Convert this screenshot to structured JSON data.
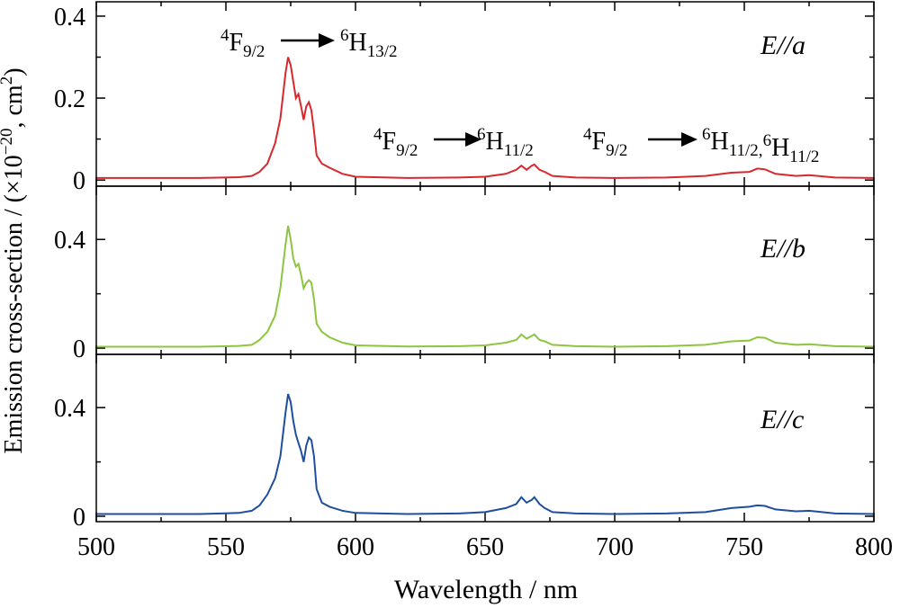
{
  "xlabel": "Wavelength / nm",
  "ylabel": {
    "text": "Emission cross-section / (×10",
    "sup1": "−20",
    "mid": ", cm",
    "sup2": "2",
    "end": ")"
  },
  "chart_data": [
    {
      "type": "line",
      "label": "E//a",
      "x": [
        500,
        540,
        555,
        560,
        563,
        566,
        569,
        571,
        573,
        574,
        575,
        576,
        577,
        578,
        579,
        580,
        581,
        582,
        583,
        584,
        585,
        587,
        590,
        595,
        600,
        620,
        640,
        650,
        658,
        662,
        664,
        666,
        668,
        669,
        671,
        673,
        676,
        685,
        700,
        720,
        735,
        745,
        752,
        755,
        758,
        762,
        770,
        775,
        785,
        800
      ],
      "series": [
        {
          "name": "E//a",
          "color": "#d9272e",
          "values": [
            0.005,
            0.005,
            0.007,
            0.01,
            0.02,
            0.04,
            0.09,
            0.15,
            0.26,
            0.3,
            0.28,
            0.24,
            0.2,
            0.21,
            0.18,
            0.147,
            0.18,
            0.19,
            0.17,
            0.12,
            0.06,
            0.04,
            0.03,
            0.015,
            0.008,
            0.005,
            0.006,
            0.008,
            0.015,
            0.025,
            0.035,
            0.025,
            0.035,
            0.038,
            0.025,
            0.02,
            0.01,
            0.006,
            0.005,
            0.006,
            0.01,
            0.018,
            0.02,
            0.028,
            0.026,
            0.015,
            0.01,
            0.012,
            0.006,
            0.005
          ]
        }
      ],
      "xlim": [
        500,
        800
      ],
      "xticks": [
        500,
        550,
        600,
        650,
        700,
        750,
        800
      ],
      "xminor": [
        525,
        575,
        625,
        675,
        725,
        775
      ],
      "ylim": [
        -0.015,
        0.435
      ],
      "yticks": [
        0,
        0.2,
        0.4
      ],
      "yminor": [
        0.1,
        0.3
      ],
      "annotations": [
        {
          "initial": {
            "sup": "4",
            "base": "F",
            "sub": "9/2"
          },
          "final": [
            {
              "sup": "6",
              "base": "H",
              "sub": "13/2"
            }
          ]
        },
        {
          "initial": {
            "sup": "4",
            "base": "F",
            "sub": "9/2"
          },
          "final": [
            {
              "sup": "6",
              "base": "H",
              "sub": "11/2"
            }
          ]
        },
        {
          "initial": {
            "sup": "4",
            "base": "F",
            "sub": "9/2"
          },
          "final": [
            {
              "sup": "6",
              "base": "H",
              "sub": "11/2,"
            },
            {
              "sup": "6",
              "base": "H",
              "sub": "11/2"
            }
          ]
        }
      ]
    },
    {
      "type": "line",
      "label": "E//b",
      "x": [
        500,
        540,
        555,
        560,
        563,
        566,
        569,
        571,
        573,
        574,
        575,
        576,
        577,
        578,
        579,
        580,
        581,
        582,
        583,
        584,
        585,
        587,
        590,
        595,
        600,
        620,
        640,
        650,
        658,
        662,
        664,
        666,
        668,
        669,
        671,
        673,
        676,
        685,
        700,
        720,
        735,
        745,
        752,
        755,
        758,
        762,
        770,
        775,
        785,
        800
      ],
      "series": [
        {
          "name": "E//b",
          "color": "#8cc63f",
          "values": [
            0.005,
            0.005,
            0.008,
            0.012,
            0.03,
            0.06,
            0.12,
            0.22,
            0.38,
            0.45,
            0.4,
            0.33,
            0.3,
            0.31,
            0.27,
            0.22,
            0.24,
            0.25,
            0.24,
            0.18,
            0.09,
            0.06,
            0.04,
            0.02,
            0.01,
            0.006,
            0.007,
            0.01,
            0.02,
            0.03,
            0.05,
            0.035,
            0.045,
            0.05,
            0.03,
            0.025,
            0.012,
            0.007,
            0.005,
            0.007,
            0.012,
            0.025,
            0.028,
            0.04,
            0.038,
            0.02,
            0.012,
            0.014,
            0.007,
            0.005
          ]
        }
      ],
      "xlim": [
        500,
        800
      ],
      "xticks": [
        500,
        550,
        600,
        650,
        700,
        750,
        800
      ],
      "xminor": [
        525,
        575,
        625,
        675,
        725,
        775
      ],
      "ylim": [
        -0.023,
        0.596
      ],
      "yticks": [
        0,
        0.4
      ],
      "yminor": [
        0.2
      ]
    },
    {
      "type": "line",
      "label": "E//c",
      "x": [
        500,
        540,
        555,
        560,
        563,
        566,
        569,
        571,
        573,
        574,
        575,
        576,
        577,
        578,
        579,
        580,
        581,
        582,
        583,
        584,
        585,
        587,
        590,
        595,
        600,
        620,
        640,
        650,
        658,
        662,
        664,
        666,
        668,
        669,
        671,
        673,
        676,
        685,
        700,
        720,
        735,
        745,
        752,
        755,
        758,
        762,
        770,
        775,
        785,
        800
      ],
      "series": [
        {
          "name": "E//c",
          "color": "#1f4e9e",
          "values": [
            0.008,
            0.008,
            0.012,
            0.02,
            0.04,
            0.08,
            0.14,
            0.22,
            0.38,
            0.45,
            0.42,
            0.35,
            0.3,
            0.27,
            0.24,
            0.2,
            0.26,
            0.29,
            0.28,
            0.22,
            0.1,
            0.05,
            0.035,
            0.02,
            0.012,
            0.008,
            0.01,
            0.015,
            0.03,
            0.045,
            0.07,
            0.05,
            0.06,
            0.07,
            0.045,
            0.03,
            0.015,
            0.01,
            0.008,
            0.01,
            0.015,
            0.03,
            0.035,
            0.04,
            0.038,
            0.025,
            0.018,
            0.02,
            0.01,
            0.008
          ]
        }
      ],
      "xlim": [
        500,
        800
      ],
      "xticks": [
        500,
        550,
        600,
        650,
        700,
        750,
        800
      ],
      "xminor": [
        525,
        575,
        625,
        675,
        725,
        775
      ],
      "ylim": [
        -0.02,
        0.596
      ],
      "yticks": [
        0,
        0.4
      ],
      "yminor": [
        0.2
      ]
    }
  ]
}
